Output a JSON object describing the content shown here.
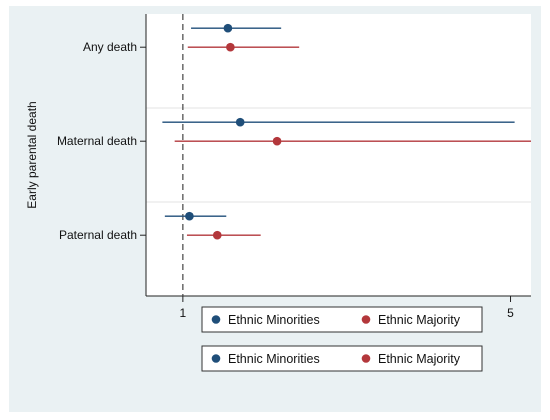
{
  "chart_data": {
    "type": "forest",
    "ylabel": "Early parental death",
    "categories": [
      "Any death",
      "Maternal death",
      "Paternal death"
    ],
    "reference_line": 1,
    "x_ticks": [
      1,
      5
    ],
    "xlim": [
      0.55,
      5.25
    ],
    "grid": "horizontal",
    "legend_position": "bottom",
    "series": [
      {
        "name": "Ethnic Minorities",
        "color": "#1f4e79",
        "points": [
          {
            "category": "Any death",
            "estimate": 1.55,
            "lower": 1.1,
            "upper": 2.2
          },
          {
            "category": "Maternal death",
            "estimate": 1.7,
            "lower": 0.75,
            "upper": 5.05
          },
          {
            "category": "Paternal death",
            "estimate": 1.08,
            "lower": 0.78,
            "upper": 1.53
          }
        ]
      },
      {
        "name": "Ethnic Majority",
        "color": "#b3373b",
        "points": [
          {
            "category": "Any death",
            "estimate": 1.58,
            "lower": 1.06,
            "upper": 2.42
          },
          {
            "category": "Maternal death",
            "estimate": 2.15,
            "lower": 0.9,
            "upper": 5.3
          },
          {
            "category": "Paternal death",
            "estimate": 1.42,
            "lower": 1.05,
            "upper": 1.95
          }
        ]
      }
    ]
  }
}
